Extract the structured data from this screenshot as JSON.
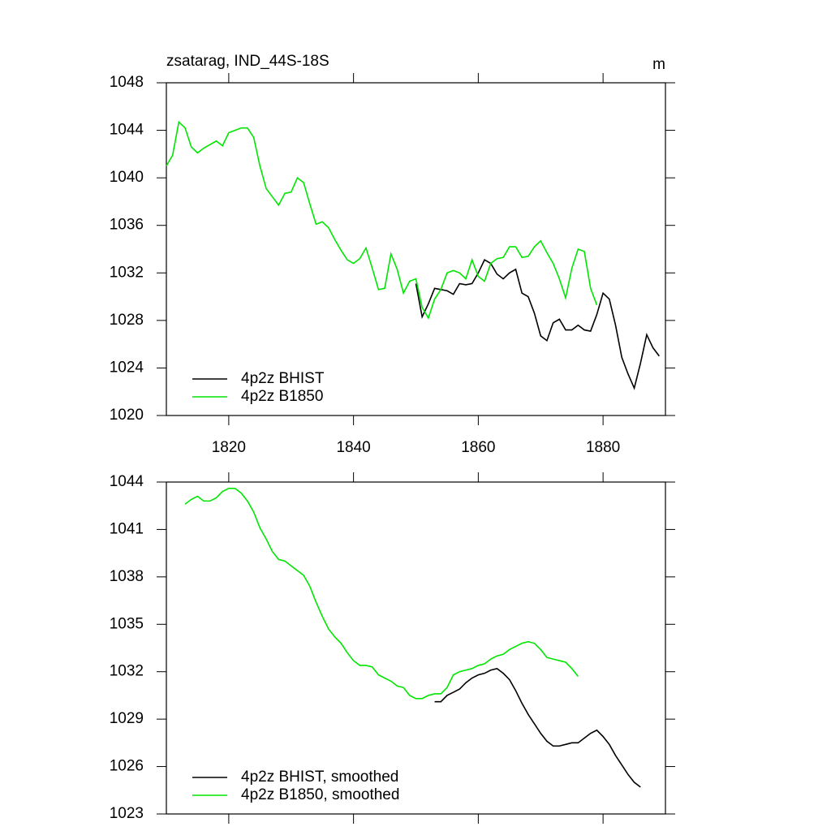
{
  "chart_data": [
    {
      "type": "line",
      "title": "zsatarag, IND_44S-18S",
      "units": "m",
      "x": [
        1810,
        1811,
        1812,
        1813,
        1814,
        1815,
        1816,
        1817,
        1818,
        1819,
        1820,
        1821,
        1822,
        1823,
        1824,
        1825,
        1826,
        1827,
        1828,
        1829,
        1830,
        1831,
        1832,
        1833,
        1834,
        1835,
        1836,
        1837,
        1838,
        1839,
        1840,
        1841,
        1842,
        1843,
        1844,
        1845,
        1846,
        1847,
        1848,
        1849,
        1850,
        1851,
        1852,
        1853,
        1854,
        1855,
        1856,
        1857,
        1858,
        1859,
        1860,
        1861,
        1862,
        1863,
        1864,
        1865,
        1866,
        1867,
        1868,
        1869,
        1870,
        1871,
        1872,
        1873,
        1874,
        1875,
        1876,
        1877,
        1878,
        1879,
        1880,
        1881,
        1882,
        1883,
        1884,
        1885,
        1886,
        1887,
        1888,
        1889
      ],
      "series": [
        {
          "name": "4p2z BHIST",
          "color": "#000000",
          "values": [
            null,
            null,
            null,
            null,
            null,
            null,
            null,
            null,
            null,
            null,
            null,
            null,
            null,
            null,
            null,
            null,
            null,
            null,
            null,
            null,
            null,
            null,
            null,
            null,
            null,
            null,
            null,
            null,
            null,
            null,
            null,
            null,
            null,
            null,
            null,
            null,
            null,
            null,
            null,
            null,
            1031.1,
            1028.3,
            1029.4,
            1030.7,
            1030.6,
            1030.5,
            1030.2,
            1031.1,
            1031.0,
            1031.1,
            1032.0,
            1033.1,
            1032.8,
            1031.9,
            1031.5,
            1032.0,
            1032.3,
            1030.3,
            1030.0,
            1028.6,
            1026.7,
            1026.3,
            1027.8,
            1028.1,
            1027.2,
            1027.2,
            1027.6,
            1027.2,
            1027.1,
            1028.5,
            1030.3,
            1029.8,
            1027.6,
            1024.9,
            1023.5,
            1022.3,
            1024.4,
            1026.8,
            1025.7,
            1025.0
          ]
        },
        {
          "name": "4p2z B1850",
          "color": "#00e600",
          "values": [
            1041.0,
            1041.9,
            1044.7,
            1044.2,
            1042.6,
            1042.1,
            1042.5,
            1042.8,
            1043.1,
            1042.7,
            1043.8,
            1044.0,
            1044.2,
            1044.2,
            1043.4,
            1041.0,
            1039.1,
            1038.4,
            1037.7,
            1038.7,
            1038.8,
            1040.0,
            1039.6,
            1037.8,
            1036.1,
            1036.3,
            1035.8,
            1034.8,
            1033.9,
            1033.1,
            1032.8,
            1033.2,
            1034.1,
            1032.4,
            1030.6,
            1030.7,
            1033.6,
            1032.3,
            1030.3,
            1031.3,
            1031.5,
            1029.1,
            1028.2,
            1029.8,
            1030.6,
            1032.0,
            1032.2,
            1032.0,
            1031.5,
            1033.1,
            1031.7,
            1031.3,
            1032.8,
            1033.2,
            1033.3,
            1034.2,
            1034.2,
            1033.3,
            1033.4,
            1034.2,
            1034.7,
            1033.7,
            1032.8,
            1031.5,
            1029.9,
            1032.4,
            1034.0,
            1033.8,
            1030.7,
            1029.3,
            null,
            null,
            null,
            null,
            null,
            null,
            null,
            null,
            null,
            null
          ]
        }
      ],
      "xlim": [
        1810,
        1890
      ],
      "xticks": [
        1820,
        1840,
        1860,
        1880
      ],
      "ylim": [
        1020,
        1048
      ],
      "yticks": [
        1020,
        1024,
        1028,
        1032,
        1036,
        1040,
        1044,
        1048
      ],
      "legend": "lower left"
    },
    {
      "type": "line",
      "x": [
        1810,
        1811,
        1812,
        1813,
        1814,
        1815,
        1816,
        1817,
        1818,
        1819,
        1820,
        1821,
        1822,
        1823,
        1824,
        1825,
        1826,
        1827,
        1828,
        1829,
        1830,
        1831,
        1832,
        1833,
        1834,
        1835,
        1836,
        1837,
        1838,
        1839,
        1840,
        1841,
        1842,
        1843,
        1844,
        1845,
        1846,
        1847,
        1848,
        1849,
        1850,
        1851,
        1852,
        1853,
        1854,
        1855,
        1856,
        1857,
        1858,
        1859,
        1860,
        1861,
        1862,
        1863,
        1864,
        1865,
        1866,
        1867,
        1868,
        1869,
        1870,
        1871,
        1872,
        1873,
        1874,
        1875,
        1876,
        1877,
        1878,
        1879,
        1880,
        1881,
        1882,
        1883,
        1884,
        1885,
        1886,
        1887,
        1888,
        1889
      ],
      "series": [
        {
          "name": "4p2z BHIST, smoothed",
          "color": "#000000",
          "values": [
            null,
            null,
            null,
            null,
            null,
            null,
            null,
            null,
            null,
            null,
            null,
            null,
            null,
            null,
            null,
            null,
            null,
            null,
            null,
            null,
            null,
            null,
            null,
            null,
            null,
            null,
            null,
            null,
            null,
            null,
            null,
            null,
            null,
            null,
            null,
            null,
            null,
            null,
            null,
            null,
            null,
            null,
            null,
            1030.1,
            1030.1,
            1030.5,
            1030.7,
            1030.9,
            1031.3,
            1031.6,
            1031.8,
            1031.9,
            1032.1,
            1032.2,
            1031.9,
            1031.5,
            1030.8,
            1030.0,
            1029.3,
            1028.7,
            1028.1,
            1027.6,
            1027.3,
            1027.3,
            1027.4,
            1027.5,
            1027.5,
            1027.8,
            1028.1,
            1028.3,
            1027.9,
            1027.4,
            1026.7,
            1026.1,
            1025.5,
            1025.0,
            1024.7,
            null,
            null,
            null
          ]
        },
        {
          "name": "4p2z B1850, smoothed",
          "color": "#00e600",
          "values": [
            null,
            null,
            null,
            1042.6,
            1042.9,
            1043.1,
            1042.8,
            1042.8,
            1043.0,
            1043.4,
            1043.6,
            1043.6,
            1043.3,
            1042.8,
            1042.1,
            1041.1,
            1040.4,
            1039.6,
            1039.1,
            1039.0,
            1038.7,
            1038.4,
            1038.1,
            1037.4,
            1036.4,
            1035.5,
            1034.7,
            1034.2,
            1033.8,
            1033.2,
            1032.7,
            1032.4,
            1032.4,
            1032.3,
            1031.8,
            1031.6,
            1031.4,
            1031.1,
            1031.0,
            1030.5,
            1030.3,
            1030.3,
            1030.5,
            1030.6,
            1030.6,
            1031.0,
            1031.8,
            1032.0,
            1032.1,
            1032.2,
            1032.4,
            1032.5,
            1032.8,
            1033.0,
            1033.1,
            1033.4,
            1033.6,
            1033.8,
            1033.9,
            1033.8,
            1033.4,
            1032.9,
            1032.8,
            1032.7,
            1032.6,
            1032.2,
            1031.7,
            null,
            null,
            null,
            null,
            null,
            null,
            null,
            null,
            null,
            null,
            null,
            null,
            null
          ]
        }
      ],
      "xlim": [
        1810,
        1890
      ],
      "xticks": [
        1820,
        1840,
        1860,
        1880
      ],
      "xtick_labels": false,
      "ylim": [
        1023,
        1044
      ],
      "yticks": [
        1023,
        1026,
        1029,
        1032,
        1035,
        1038,
        1041,
        1044
      ],
      "legend": "lower left"
    }
  ]
}
